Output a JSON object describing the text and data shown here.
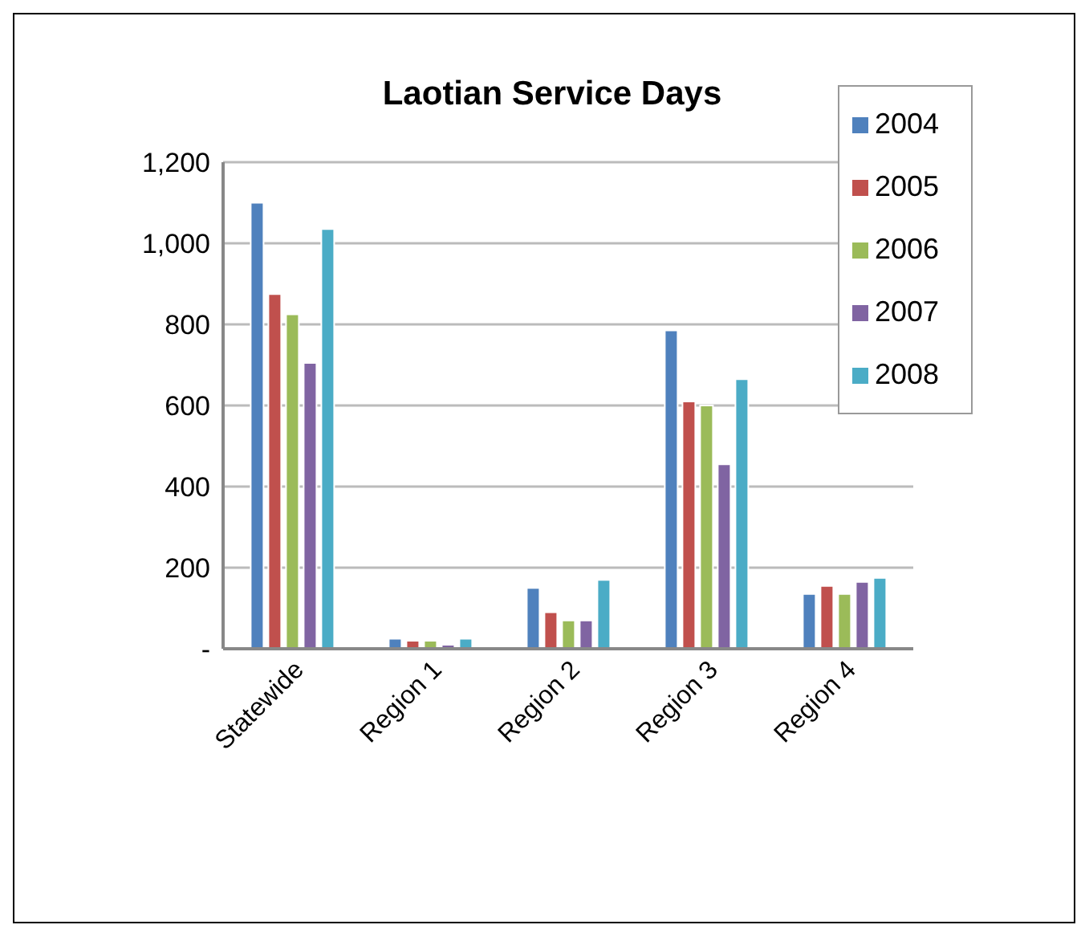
{
  "chart_data": {
    "type": "bar",
    "title": "Laotian Service Days",
    "categories": [
      "Statewide",
      "Region 1",
      "Region 2",
      "Region 3",
      "Region 4"
    ],
    "series": [
      {
        "name": "2004",
        "color": "#4f81bd",
        "values": [
          1100,
          25,
          150,
          785,
          135
        ]
      },
      {
        "name": "2005",
        "color": "#c0504d",
        "values": [
          875,
          20,
          90,
          610,
          155
        ]
      },
      {
        "name": "2006",
        "color": "#9bbb59",
        "values": [
          825,
          20,
          70,
          600,
          135
        ]
      },
      {
        "name": "2007",
        "color": "#8064a2",
        "values": [
          705,
          10,
          70,
          455,
          165
        ]
      },
      {
        "name": "2008",
        "color": "#4bacc6",
        "values": [
          1035,
          25,
          170,
          665,
          175
        ]
      }
    ],
    "ylim": [
      0,
      1200
    ],
    "yticks": [
      {
        "value": 0,
        "label": "-"
      },
      {
        "value": 200,
        "label": "200"
      },
      {
        "value": 400,
        "label": "400"
      },
      {
        "value": 600,
        "label": "600"
      },
      {
        "value": 800,
        "label": "800"
      },
      {
        "value": 1000,
        "label": "1,000"
      },
      {
        "value": 1200,
        "label": "1,200"
      }
    ],
    "grid": "y",
    "legend": "top right"
  }
}
